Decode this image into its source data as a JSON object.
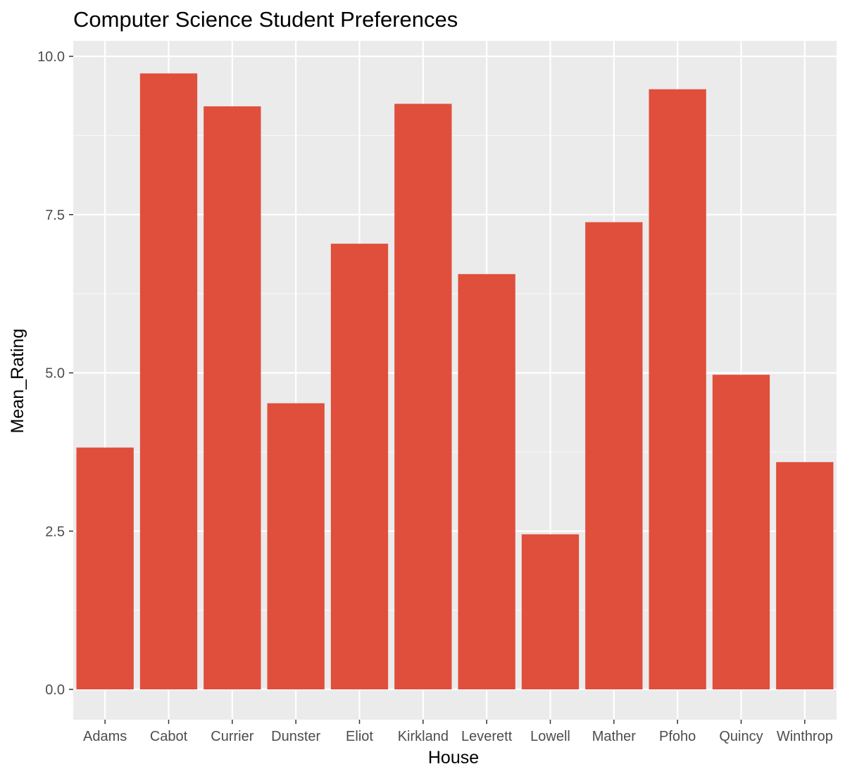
{
  "chart_data": {
    "type": "bar",
    "title": "Computer Science Student Preferences",
    "xlabel": "House",
    "ylabel": "Mean_Rating",
    "categories": [
      "Adams",
      "Cabot",
      "Currier",
      "Dunster",
      "Eliot",
      "Kirkland",
      "Leverett",
      "Lowell",
      "Mather",
      "Pfoho",
      "Quincy",
      "Winthrop"
    ],
    "values": [
      3.82,
      9.73,
      9.21,
      4.52,
      7.04,
      9.25,
      6.56,
      2.45,
      7.38,
      9.48,
      4.97,
      3.59
    ],
    "ylim": [
      -0.4,
      10.3
    ],
    "yticks": [
      0,
      2.5,
      5,
      7.5,
      10
    ],
    "ytick_labels": [
      "0.0",
      "2.5",
      "5.0",
      "7.5",
      "10.0"
    ],
    "grid": true,
    "legend": "none",
    "colors": {
      "bar": "#E04E3C",
      "panel": "#EBEBEB",
      "grid_major": "#FFFFFF",
      "grid_minor": "#F7F7F7",
      "tick_text": "#4D4D4D",
      "tick_mark": "#333333"
    }
  }
}
